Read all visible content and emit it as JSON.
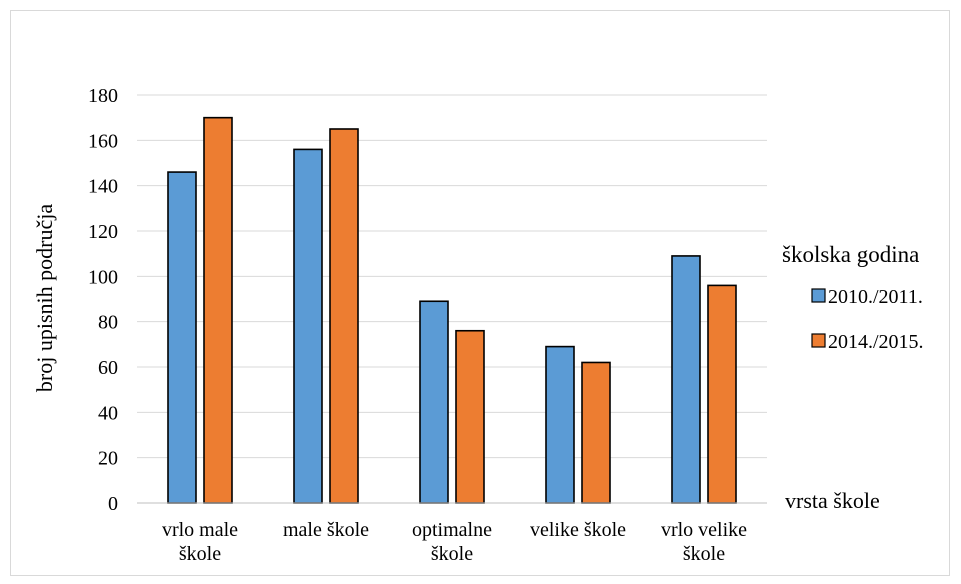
{
  "chart_data": {
    "type": "bar",
    "categories": [
      [
        "vrlo male",
        "škole"
      ],
      [
        "male škole"
      ],
      [
        "optimalne",
        "škole"
      ],
      [
        "velike škole"
      ],
      [
        "vrlo velike",
        "škole"
      ]
    ],
    "series": [
      {
        "name": "2010./2011.",
        "color": "#5b9bd5",
        "values": [
          146,
          156,
          89,
          69,
          109
        ]
      },
      {
        "name": "2014./2015.",
        "color": "#ed7d31",
        "values": [
          170,
          165,
          76,
          62,
          96
        ]
      }
    ],
    "title": "",
    "xlabel": "vrsta škole",
    "ylabel": "broj upisnih područja",
    "ylim": [
      0,
      180
    ],
    "yticks": [
      0,
      20,
      40,
      60,
      80,
      100,
      120,
      140,
      160,
      180
    ],
    "grid": true,
    "legend": {
      "title": "školska godina",
      "placement": "right"
    }
  }
}
